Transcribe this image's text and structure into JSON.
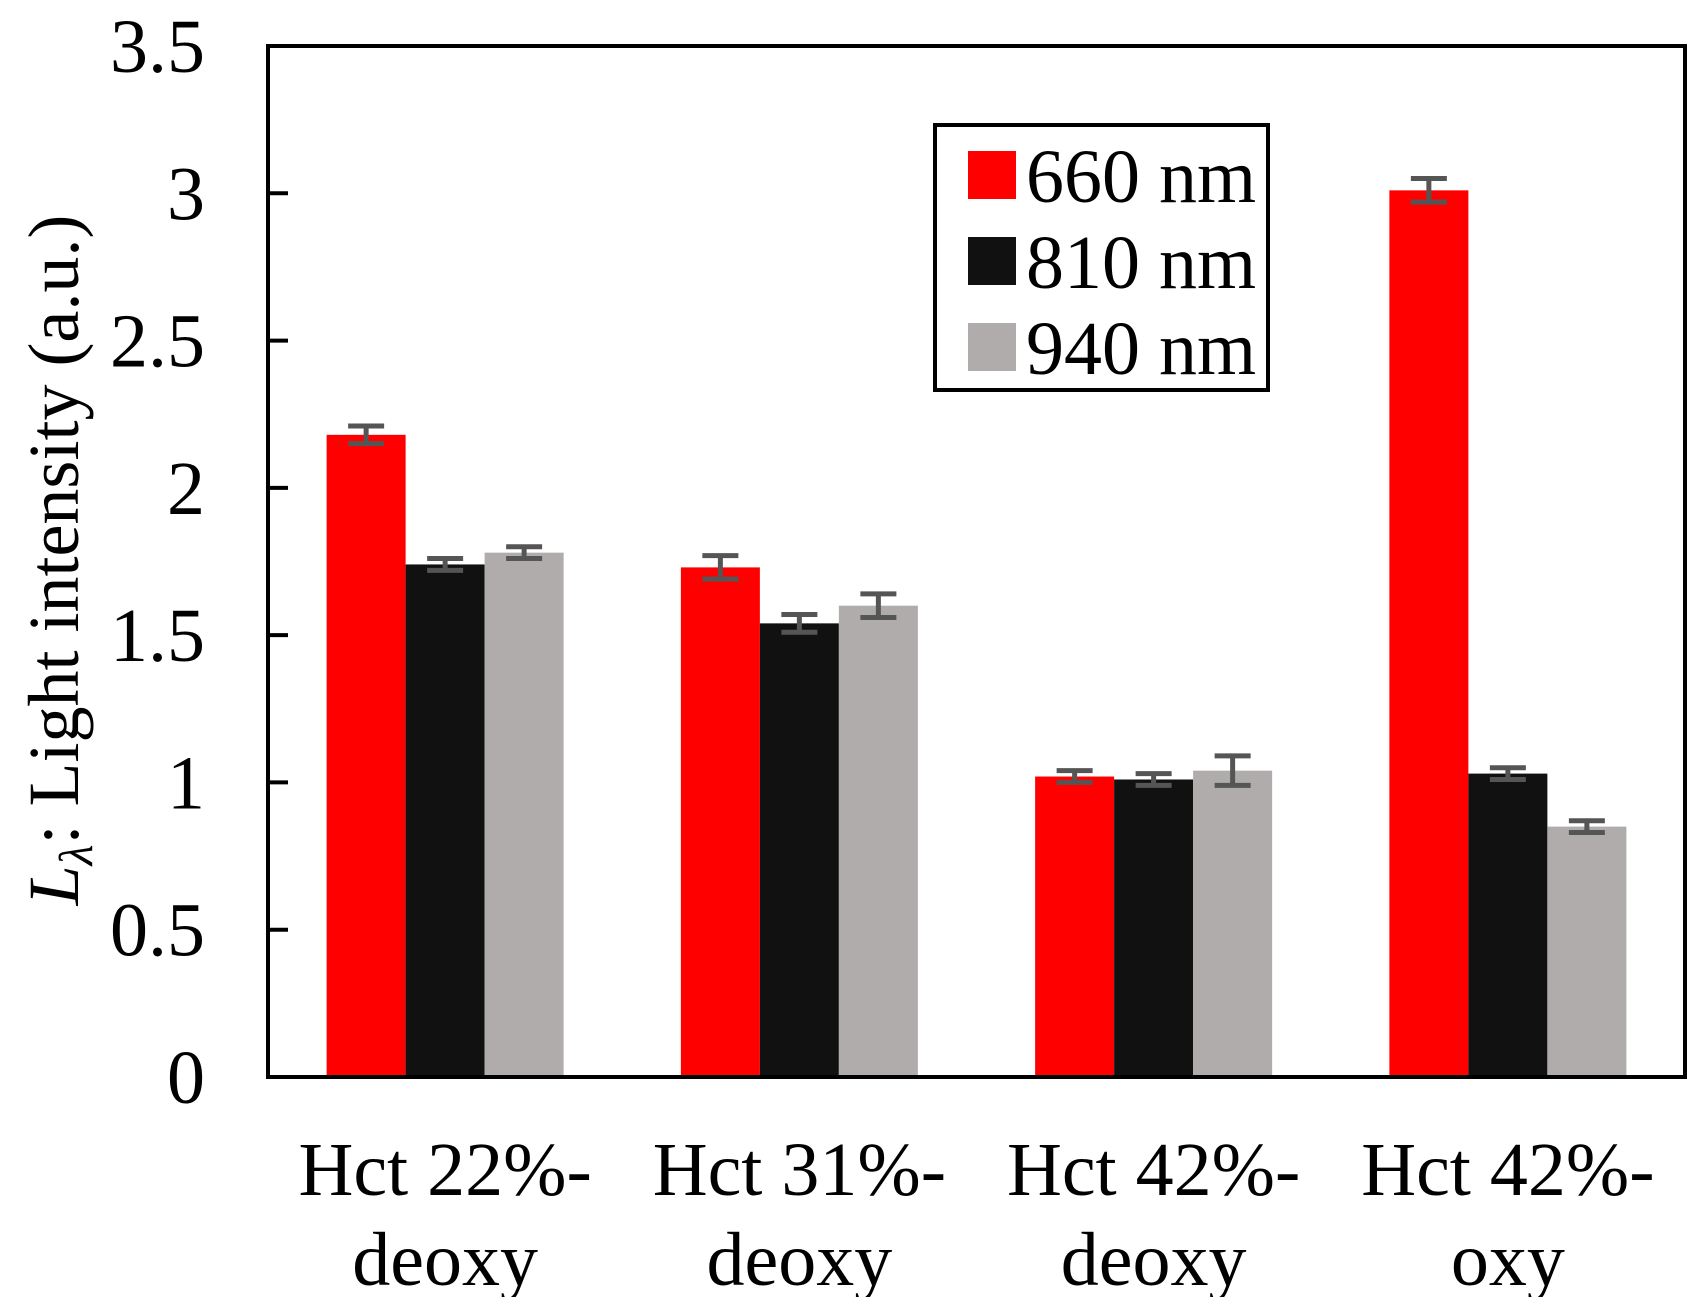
{
  "chart_data": {
    "type": "bar",
    "title": "",
    "xlabel": "",
    "ylabel": {
      "symbol": "L",
      "subscript": "λ",
      "text": ": Light intensity (a.u.)"
    },
    "ylim": [
      0,
      3.5
    ],
    "yticks": [
      "0",
      "0.5",
      "1",
      "1.5",
      "2",
      "2.5",
      "3",
      "3.5"
    ],
    "categories": [
      [
        "Hct 22%-",
        "deoxy"
      ],
      [
        "Hct 31%-",
        "deoxy"
      ],
      [
        "Hct 42%-",
        "deoxy"
      ],
      [
        "Hct 42%-",
        "oxy"
      ]
    ],
    "series": [
      {
        "name": "660 nm",
        "color": "#ff0000",
        "values": [
          2.18,
          1.73,
          1.02,
          3.01
        ],
        "errors": [
          0.03,
          0.04,
          0.02,
          0.04
        ]
      },
      {
        "name": "810 nm",
        "color": "#111111",
        "values": [
          1.74,
          1.54,
          1.01,
          1.03
        ],
        "errors": [
          0.02,
          0.03,
          0.02,
          0.02
        ]
      },
      {
        "name": "940 nm",
        "color": "#b0acac",
        "values": [
          1.78,
          1.6,
          1.04,
          0.85
        ],
        "errors": [
          0.02,
          0.04,
          0.05,
          0.02
        ]
      }
    ],
    "grid": false,
    "legend_position": "top-right"
  }
}
